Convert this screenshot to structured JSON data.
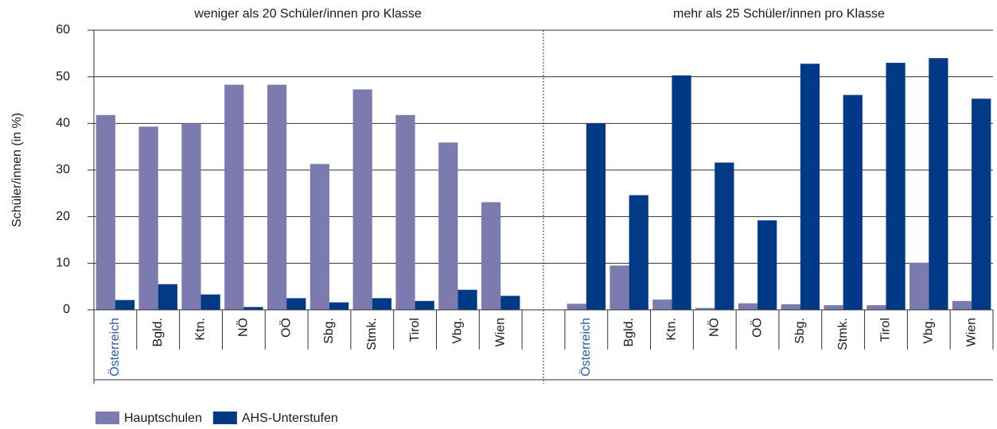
{
  "chart_data": {
    "type": "bar",
    "y_label": "Schüler/innen (in %)",
    "groups": [
      {
        "title": "weniger als 20 Schüler/innen pro Klasse",
        "categories": [
          "Österreich",
          "Bgld.",
          "Ktn.",
          "NÖ",
          "OÖ",
          "Sbg.",
          "Stmk.",
          "Tirol",
          "Vbg.",
          "Wien"
        ]
      },
      {
        "title": "mehr als 25 Schüler/innen pro Klasse",
        "categories": [
          "Österreich",
          "Bgld.",
          "Ktn.",
          "NÖ",
          "OÖ",
          "Sbg.",
          "Stmk.",
          "Tirol",
          "Vbg.",
          "Wien"
        ]
      }
    ],
    "series": [
      {
        "name": "Hauptschulen",
        "color": "#7b7bb0",
        "values": [
          41.8,
          39.3,
          40,
          48.3,
          48.3,
          31.3,
          47.3,
          41.8,
          35.9,
          23.1,
          1.3,
          9.5,
          2.2,
          0.4,
          1.4,
          1.2,
          1.0,
          1.0,
          10.1,
          1.9
        ]
      },
      {
        "name": "AHS-Unterstufen",
        "color": "#003a87",
        "values": [
          2.1,
          5.5,
          3.3,
          0.6,
          2.5,
          1.6,
          2.5,
          1.9,
          4.3,
          3,
          40,
          24.6,
          50.3,
          31.6,
          19.2,
          52.8,
          46.1,
          53,
          54,
          45.3
        ]
      }
    ],
    "ylim": [
      0,
      60
    ],
    "yticks": [
      0,
      10,
      20,
      30,
      40,
      50,
      60
    ],
    "grid": true
  }
}
